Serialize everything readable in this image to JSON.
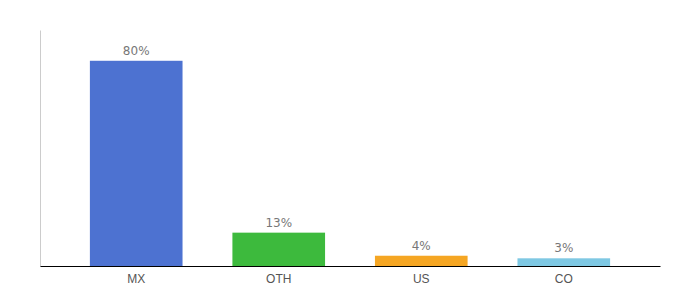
{
  "chart_data": {
    "type": "bar",
    "categories": [
      "MX",
      "OTH",
      "US",
      "CO"
    ],
    "values": [
      80,
      13,
      4,
      3
    ],
    "value_labels": [
      "80%",
      "13%",
      "4%",
      "3%"
    ],
    "colors": [
      "#4d72d1",
      "#3dba3d",
      "#f5a623",
      "#7ec8e3"
    ],
    "ylim": [
      0,
      92
    ],
    "data_labels": true,
    "tick_labels": "x"
  }
}
